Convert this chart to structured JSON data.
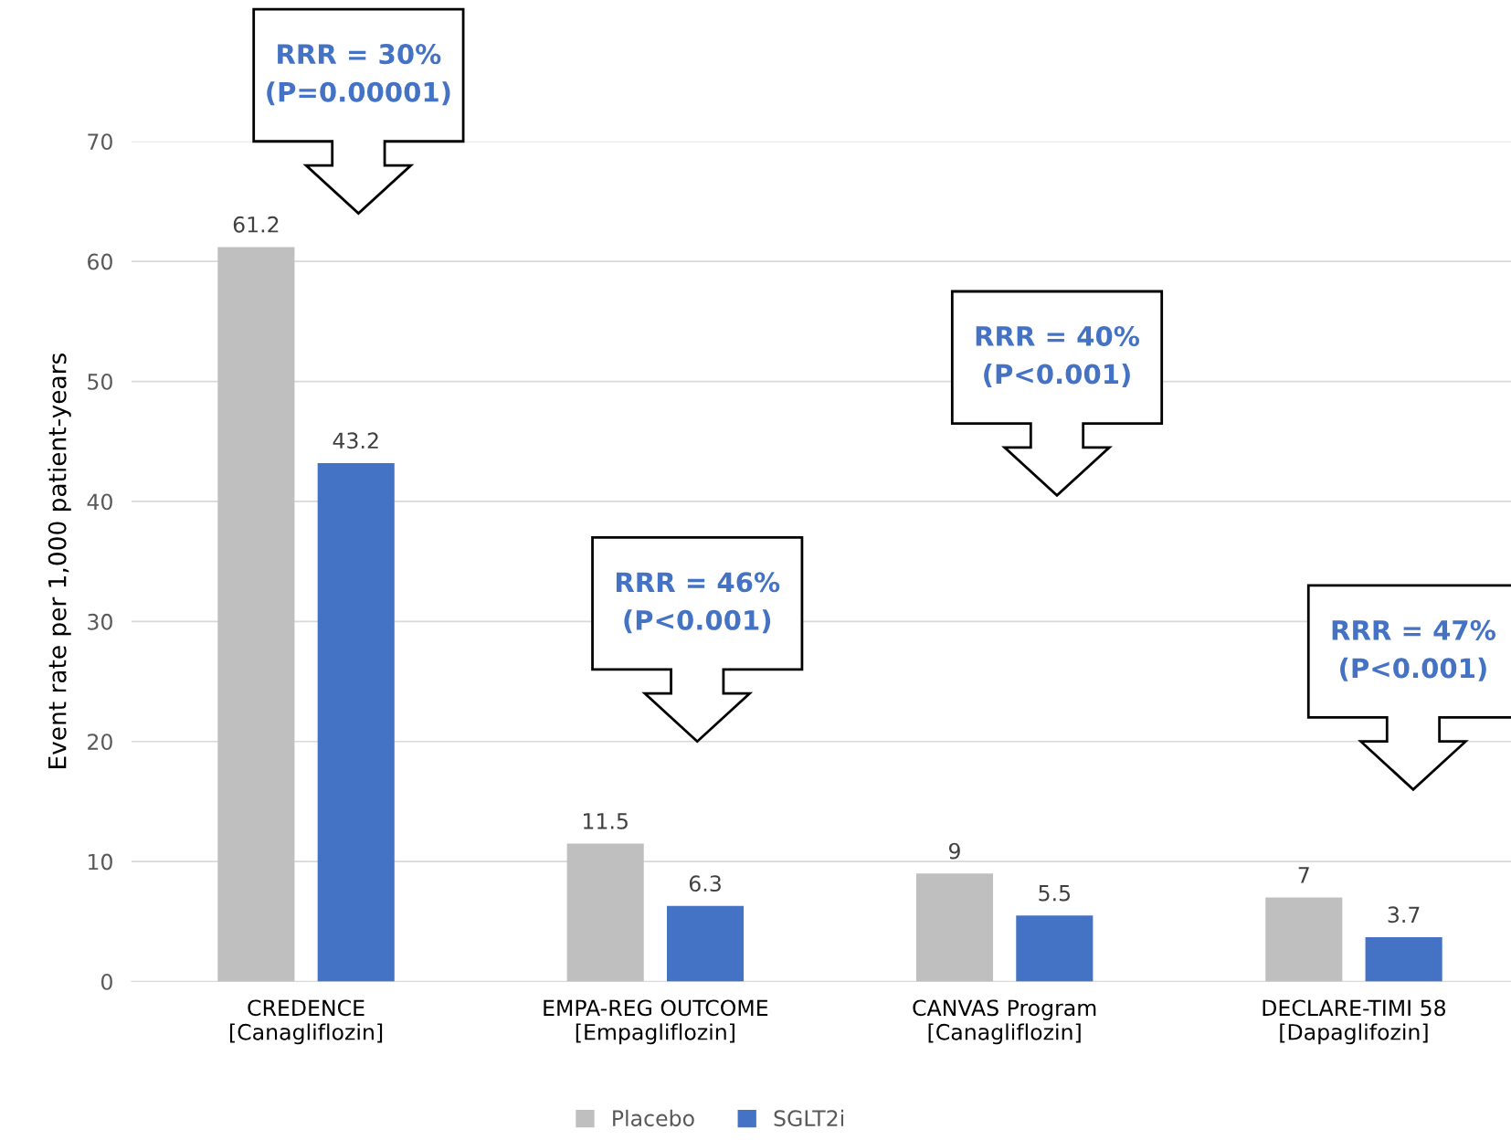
{
  "chart_data": {
    "type": "bar",
    "ylabel": "Event rate per 1,000 patient-years",
    "categories": [
      "CREDENCE\n[Canagliflozin]",
      "EMPA-REG OUTCOME\n[Empagliflozin]",
      "CANVAS Program\n[Canagliflozin]",
      "DECLARE-TIMI 58\n[Dapaglifozin]"
    ],
    "series": [
      {
        "name": "Placebo",
        "color": "#bfbfbf",
        "values": [
          61.2,
          11.5,
          9,
          7
        ]
      },
      {
        "name": "SGLT2i",
        "color": "#4472c4",
        "values": [
          43.2,
          6.3,
          5.5,
          3.7
        ]
      }
    ],
    "ylim": [
      0,
      70
    ],
    "yticks": [
      0,
      10,
      20,
      30,
      40,
      50,
      60,
      70
    ],
    "grid": "y",
    "legend": "bottom",
    "data_labels": true,
    "annotations": [
      "RRR = 30%\n(P=0.00001)",
      "RRR = 46%\n(P<0.001)",
      "RRR = 40%\n(P<0.001)",
      "RRR = 47%\n(P<0.001)"
    ]
  }
}
